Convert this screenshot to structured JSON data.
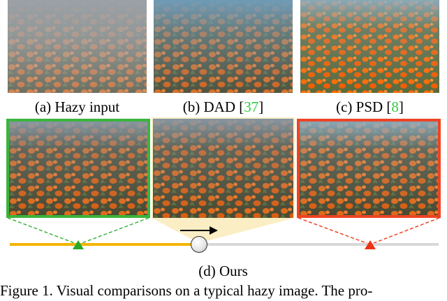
{
  "top_row": [
    {
      "caption_main": "(a) Hazy input",
      "ref": "",
      "caption_tail": ""
    },
    {
      "caption_main": "(b) DAD [",
      "ref": "37",
      "caption_tail": "]"
    },
    {
      "caption_main": "(c) PSD [",
      "ref": "8",
      "caption_tail": "]"
    }
  ],
  "ours_caption": "(d) Ours",
  "figure_caption": "Figure 1. Visual comparisons on a typical hazy image. The pro-",
  "colors": {
    "green_frame": "#3cb43c",
    "yellow_frame": "#f7d98a",
    "red_frame": "#ee4422",
    "slider_left": "#f5b400",
    "slider_right": "#d8d8d8",
    "ref_green": "#2ecc40"
  },
  "slider": {
    "position_fraction": 0.44
  }
}
